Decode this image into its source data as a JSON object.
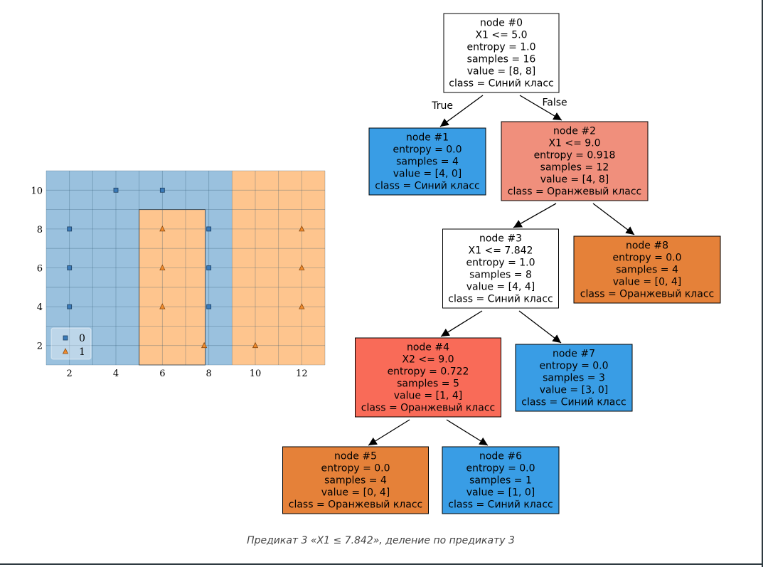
{
  "caption_prefix": "Предикат 3 «X1 ",
  "caption_symbol": "≤",
  "caption_suffix": " 7.842», деление по предикату 3",
  "colors": {
    "blue_region": "#9ac1de",
    "orange_region": "#fec58e",
    "blue_node": "#399de5",
    "orange_node_dark": "#e58139",
    "orange_node_mid": "#f08f7c",
    "orange_node_light": "#f96b58",
    "marker_blue": "#3a7ab8",
    "marker_orange": "#f08a2c"
  },
  "chart_data": {
    "type": "scatter",
    "xlim": [
      1,
      13
    ],
    "ylim": [
      1,
      11
    ],
    "xticks": [
      2,
      4,
      6,
      8,
      10,
      12
    ],
    "yticks": [
      2,
      4,
      6,
      8,
      10
    ],
    "grid": true,
    "legend_placement": "bottom-left",
    "regions": [
      {
        "class": "0",
        "x": [
          1,
          9
        ],
        "y": [
          1,
          11
        ]
      },
      {
        "class": "1",
        "x": [
          9,
          13
        ],
        "y": [
          1,
          11
        ]
      },
      {
        "class": "1",
        "x": [
          5,
          7.842
        ],
        "y": [
          1,
          9
        ]
      }
    ],
    "series": [
      {
        "name": "0",
        "marker": "square",
        "points": [
          [
            2,
            4
          ],
          [
            2,
            6
          ],
          [
            2,
            8
          ],
          [
            4,
            10
          ],
          [
            6,
            10
          ],
          [
            8,
            4
          ],
          [
            8,
            6
          ],
          [
            8,
            8
          ]
        ]
      },
      {
        "name": "1",
        "marker": "triangle",
        "points": [
          [
            6,
            4
          ],
          [
            6,
            6
          ],
          [
            6,
            8
          ],
          [
            7.8,
            2
          ],
          [
            10,
            2
          ],
          [
            12,
            4
          ],
          [
            12,
            6
          ],
          [
            12,
            8
          ]
        ]
      }
    ]
  },
  "tree": {
    "nodes": [
      {
        "id": "n0",
        "lines": [
          "node #0",
          "X1 <= 5.0",
          "entropy = 1.0",
          "samples = 16",
          "value = [8, 8]",
          "class = Синий класс"
        ],
        "fill": "#ffffff"
      },
      {
        "id": "n1",
        "lines": [
          "node #1",
          "entropy = 0.0",
          "samples = 4",
          "value = [4, 0]",
          "class = Синий класс"
        ],
        "fill": "#399de5"
      },
      {
        "id": "n2",
        "lines": [
          "node #2",
          "X1 <= 9.0",
          "entropy = 0.918",
          "samples = 12",
          "value = [4, 8]",
          "class = Оранжевый класс"
        ],
        "fill": "#f08f7c"
      },
      {
        "id": "n3",
        "lines": [
          "node #3",
          "X1 <= 7.842",
          "entropy = 1.0",
          "samples = 8",
          "value = [4, 4]",
          "class = Синий класс"
        ],
        "fill": "#ffffff"
      },
      {
        "id": "n8",
        "lines": [
          "node #8",
          "entropy = 0.0",
          "samples = 4",
          "value = [0, 4]",
          "class = Оранжевый класс"
        ],
        "fill": "#e58139"
      },
      {
        "id": "n4",
        "lines": [
          "node #4",
          "X2 <= 9.0",
          "entropy = 0.722",
          "samples = 5",
          "value = [1, 4]",
          "class = Оранжевый класс"
        ],
        "fill": "#f96b58"
      },
      {
        "id": "n7",
        "lines": [
          "node #7",
          "entropy = 0.0",
          "samples = 3",
          "value = [3, 0]",
          "class = Синий класс"
        ],
        "fill": "#399de5"
      },
      {
        "id": "n5",
        "lines": [
          "node #5",
          "entropy = 0.0",
          "samples = 4",
          "value = [0, 4]",
          "class = Оранжевый класс"
        ],
        "fill": "#e58139"
      },
      {
        "id": "n6",
        "lines": [
          "node #6",
          "entropy = 0.0",
          "samples = 1",
          "value = [1, 0]",
          "class = Синий класс"
        ],
        "fill": "#399de5"
      }
    ],
    "edges": [
      {
        "from": "n0",
        "to": "n1",
        "label": "True"
      },
      {
        "from": "n0",
        "to": "n2",
        "label": "False"
      },
      {
        "from": "n2",
        "to": "n3",
        "label": ""
      },
      {
        "from": "n2",
        "to": "n8",
        "label": ""
      },
      {
        "from": "n3",
        "to": "n4",
        "label": ""
      },
      {
        "from": "n3",
        "to": "n7",
        "label": ""
      },
      {
        "from": "n4",
        "to": "n5",
        "label": ""
      },
      {
        "from": "n4",
        "to": "n6",
        "label": ""
      }
    ]
  }
}
